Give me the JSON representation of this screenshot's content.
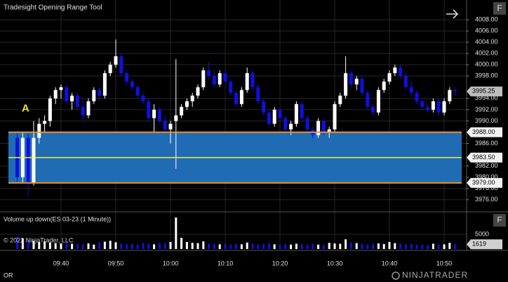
{
  "chart_data": {
    "type": "candlestick",
    "title": "Tradesight Opening Range Tool",
    "annotation": "A",
    "corner_label": "OR",
    "copyright": "© 2022 NinjaTrader, LLC",
    "logo": "NINJATRADER",
    "button": "F",
    "up_color": "#ffffff",
    "down_color": "#1010e0",
    "grid": true,
    "x": [
      572,
      573,
      574,
      575,
      576,
      577,
      578,
      579,
      580,
      581,
      582,
      583,
      584,
      585,
      586,
      587,
      588,
      589,
      590,
      591,
      592,
      593,
      594,
      595,
      596,
      597,
      598,
      599,
      600,
      601,
      602,
      603,
      604,
      605,
      606,
      607,
      608,
      609,
      610,
      611,
      612,
      613,
      614,
      615,
      616,
      617,
      618,
      619,
      620,
      621,
      622,
      623,
      624,
      625,
      626,
      627,
      628,
      629,
      630,
      631,
      632,
      633,
      634,
      635,
      636,
      637,
      638,
      639,
      640,
      641,
      642,
      643,
      644,
      645,
      646,
      647,
      648,
      649,
      650,
      651,
      652
    ],
    "open": [
      3987,
      3980,
      3987,
      3979,
      3987,
      3989.5,
      3990,
      3994,
      3995.5,
      3996,
      3993.5,
      3994.5,
      3992.5,
      3991,
      3993.5,
      3995.5,
      3994.5,
      3998.5,
      4000,
      4001.5,
      3998.5,
      3997,
      3996,
      3994.5,
      3993.5,
      3990.5,
      3992,
      3990,
      3988.5,
      3990,
      3991,
      3992.5,
      3993.5,
      3994.5,
      3996,
      3999,
      3998,
      3996.5,
      3998.5,
      3997,
      3995,
      3993,
      3995.5,
      3998.5,
      3996,
      3993.5,
      3991.5,
      3989.5,
      3992,
      3990.5,
      3988.5,
      3989.5,
      3993,
      3990.5,
      3988.5,
      3987.5,
      3990,
      3988,
      3988.5,
      3993,
      3994.5,
      3998.5,
      3996.5,
      3997.5,
      3995,
      3992.5,
      3991.5,
      3995.5,
      3997,
      3998.5,
      3999.5,
      3998,
      3996,
      3995,
      3993.5,
      3992.5,
      3992,
      3993.5,
      3991.5,
      3993.5,
      3995.5
    ],
    "high": [
      3988.5,
      3988,
      3988,
      3990,
      3990.5,
      3991,
      3994.5,
      3996,
      3996.5,
      3996.5,
      3995,
      3995,
      3994,
      3994,
      3996,
      3996,
      3999,
      4000.5,
      4004.5,
      4002,
      3999,
      3997.5,
      3996.5,
      3995,
      3994,
      3993,
      3992.5,
      3991,
      3990,
      4001,
      3993,
      3994,
      3995,
      3996.5,
      3999.5,
      4000.5,
      3999,
      3999,
      3999,
      3997.5,
      3995.5,
      3996,
      3999.5,
      3999,
      3996.5,
      3994,
      3992,
      3992.5,
      3992.5,
      3991,
      3990,
      3993.5,
      3993.5,
      3991,
      3989,
      3990.5,
      3990.5,
      3989,
      3993.5,
      3995,
      4001.5,
      3999,
      3998,
      3998,
      3995.5,
      3993,
      3996,
      3997.5,
      3999,
      4000,
      4000,
      3998.5,
      3997,
      3995.5,
      3994,
      3993,
      3994,
      3994,
      3994,
      3996,
      3996
    ],
    "low": [
      3979,
      3979,
      3976.5,
      3978.5,
      3986,
      3988,
      3989,
      3993,
      3994,
      3993,
      3992,
      3992,
      3990,
      3990.5,
      3993,
      3993.5,
      3994,
      3998,
      3999.5,
      3998,
      3996.5,
      3995.5,
      3994,
      3993,
      3990,
      3988,
      3989.5,
      3988,
      3986,
      3981.5,
      3990.5,
      3992,
      3992.5,
      3994,
      3995.5,
      3997.5,
      3996,
      3996,
      3996.5,
      3994.5,
      3992.5,
      3992.5,
      3995,
      3995.5,
      3993,
      3991,
      3989,
      3989,
      3990,
      3988,
      3987.5,
      3989,
      3990,
      3988,
      3987,
      3987,
      3987.5,
      3987,
      3988,
      3992.5,
      3994,
      3996,
      3995.5,
      3994.5,
      3992,
      3991,
      3991,
      3995,
      3996.5,
      3998,
      3997.5,
      3995.5,
      3994.5,
      3993,
      3992,
      3991.5,
      3991.5,
      3991,
      3991,
      3993,
      3994.5
    ],
    "close": [
      3980,
      3987,
      3979,
      3987,
      3989.5,
      3990,
      3994,
      3995.5,
      3996,
      3993.5,
      3994.5,
      3992.5,
      3991,
      3993.5,
      3995.5,
      3994.5,
      3998.5,
      4000,
      4001.5,
      3998.5,
      3997,
      3996,
      3994.5,
      3993.5,
      3990.5,
      3992,
      3990,
      3988.5,
      3989.5,
      3991,
      3992.5,
      3993.5,
      3994.5,
      3996,
      3999,
      3998,
      3996.5,
      3998.5,
      3997,
      3995,
      3993,
      3995.5,
      3998.5,
      3996,
      3993.5,
      3991.5,
      3989.5,
      3992,
      3990.5,
      3988.5,
      3989.5,
      3993,
      3990.5,
      3988.5,
      3987.5,
      3990,
      3988,
      3988.5,
      3993,
      3994.5,
      3998.5,
      3996.5,
      3997.5,
      3995,
      3992.5,
      3991.5,
      3995.5,
      3997,
      3998.5,
      3999.5,
      3998,
      3996,
      3995,
      3993.5,
      3992.5,
      3992,
      3993.5,
      3991.5,
      3993.5,
      3995.5,
      3995.25
    ],
    "xlim": [
      568.85,
      654.1
    ],
    "xticks": [
      {
        "value": 580,
        "label": "09:40"
      },
      {
        "value": 590,
        "label": "09:50"
      },
      {
        "value": 600,
        "label": "10:00"
      },
      {
        "value": 610,
        "label": "10:10"
      },
      {
        "value": 620,
        "label": "10:20"
      },
      {
        "value": 630,
        "label": "10:30"
      },
      {
        "value": 640,
        "label": "10:40"
      },
      {
        "value": 650,
        "label": "10:50"
      }
    ],
    "ylim": [
      3974.1,
      4011.5
    ],
    "yticks": [
      {
        "value": 4008,
        "label": "4008.00"
      },
      {
        "value": 4006,
        "label": "4006.00"
      },
      {
        "value": 4004,
        "label": "4004.00"
      },
      {
        "value": 4002,
        "label": "4002.00"
      },
      {
        "value": 4000,
        "label": "4000.00"
      },
      {
        "value": 3998,
        "label": "3998.00"
      },
      {
        "value": 3994,
        "label": "3994.00"
      },
      {
        "value": 3992,
        "label": "3992.00"
      },
      {
        "value": 3990,
        "label": "3990.00"
      },
      {
        "value": 3986,
        "label": "3986.00"
      },
      {
        "value": 3982,
        "label": "3982.00"
      },
      {
        "value": 3980,
        "label": "3980.00"
      },
      {
        "value": 3978,
        "label": "3978.00"
      },
      {
        "value": 3976,
        "label": "3976.00"
      }
    ],
    "last_price": {
      "value": 3995.25,
      "label": "3995.25"
    },
    "opening_range": {
      "high": {
        "value": 3988,
        "label": "3988.00"
      },
      "mid": {
        "value": 3983.5,
        "label": "3983.50"
      },
      "low": {
        "value": 3979,
        "label": "3979.00"
      },
      "fill": "#1f6cb5",
      "edge_color": "#f0961e",
      "mid_color": "#f5f032"
    },
    "volume": {
      "title": "Volume up down(ES 03-23 (1 Minute))",
      "values": [
        4200,
        3600,
        3000,
        2800,
        2400,
        2600,
        2200,
        2000,
        1900,
        2100,
        1800,
        1700,
        1600,
        1900,
        1500,
        2200,
        2500,
        2800,
        2300,
        1800,
        1600,
        1700,
        1500,
        2100,
        1800,
        1600,
        2000,
        1900,
        2400,
        10700,
        3800,
        2400,
        2100,
        2000,
        2600,
        1900,
        1700,
        1600,
        1800,
        1500,
        1700,
        1600,
        2200,
        1800,
        1500,
        1700,
        1900,
        1600,
        1400,
        1700,
        1500,
        1800,
        1600,
        1400,
        1700,
        1500,
        1300,
        2100,
        1900,
        1800,
        3300,
        2200,
        2000,
        1700,
        1500,
        1600,
        1900,
        1700,
        2400,
        2000,
        1800,
        1600,
        1700,
        1500,
        1400,
        1300,
        1800,
        1500,
        1600,
        2100,
        1619
      ],
      "ylim": [
        0,
        11670
      ],
      "yticks": [
        5000
      ]
    }
  }
}
